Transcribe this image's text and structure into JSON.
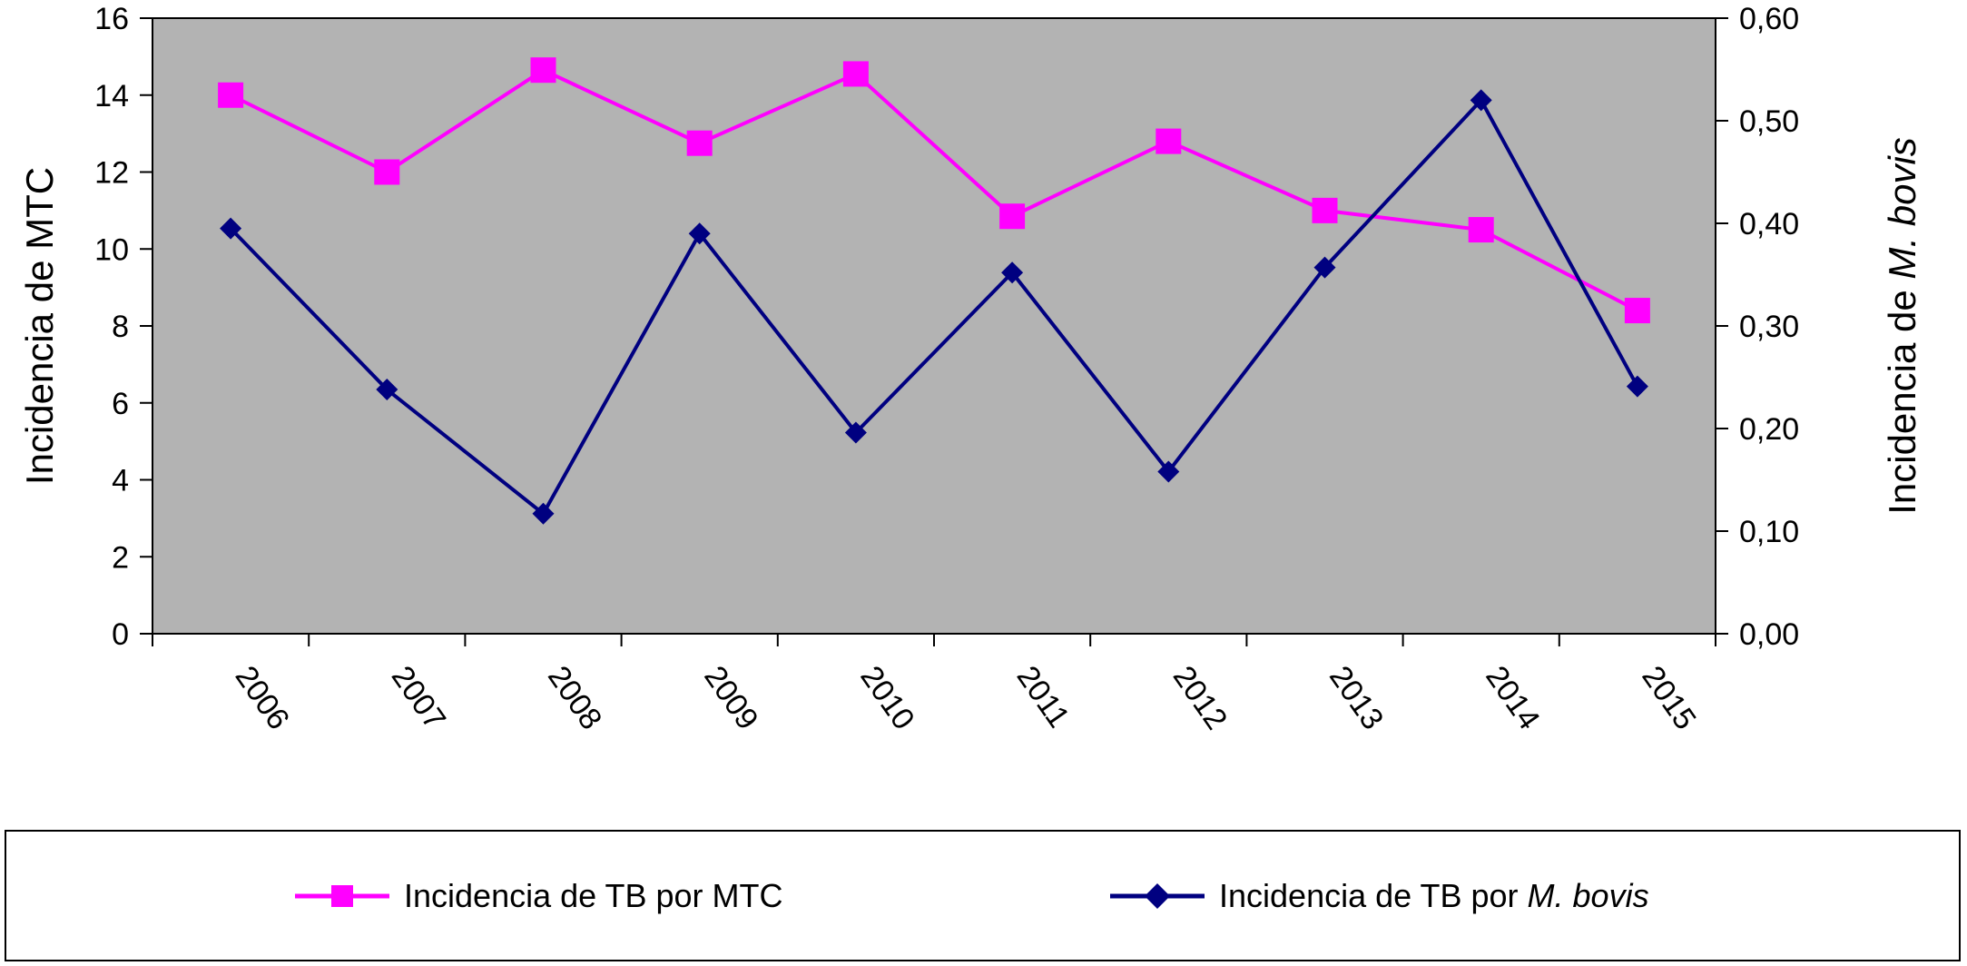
{
  "chart_data": {
    "type": "line",
    "categories": [
      "2006",
      "2007",
      "2008",
      "2009",
      "2010",
      "2011",
      "2012",
      "2013",
      "2014",
      "2015"
    ],
    "y_left": {
      "label": "Incidencia de MTC",
      "range": [
        0,
        16
      ],
      "ticks": [
        "0",
        "2",
        "4",
        "6",
        "8",
        "10",
        "12",
        "14",
        "16"
      ],
      "tick_values": [
        0,
        2,
        4,
        6,
        8,
        10,
        12,
        14,
        16
      ]
    },
    "y_right": {
      "label_prefix": "Incidencia de ",
      "label_italic": "M. bovis",
      "range": [
        0,
        0.6
      ],
      "ticks": [
        "0,00",
        "0,10",
        "0,20",
        "0,30",
        "0,40",
        "0,50",
        "0,60"
      ],
      "tick_values": [
        0,
        0.1,
        0.2,
        0.3,
        0.4,
        0.5,
        0.6
      ]
    },
    "series": [
      {
        "name": "Incidencia de TB por MTC",
        "name_prefix": "Incidencia de TB por MTC",
        "name_italic": "",
        "axis": "left",
        "color": "#ff00ff",
        "marker": "square",
        "values": [
          14.0,
          12.0,
          14.65,
          12.75,
          14.55,
          10.85,
          12.8,
          11.0,
          10.5,
          8.4
        ]
      },
      {
        "name": "Incidencia de TB por M. bovis",
        "name_prefix": "Incidencia de TB por ",
        "name_italic": "M. bovis",
        "axis": "right",
        "color": "#000080",
        "marker": "diamond",
        "values": [
          0.395,
          0.238,
          0.117,
          0.39,
          0.196,
          0.352,
          0.158,
          0.357,
          0.52,
          0.241
        ]
      }
    ],
    "plot_background": "#b3b3b3",
    "grid": false,
    "legend_position": "bottom"
  }
}
